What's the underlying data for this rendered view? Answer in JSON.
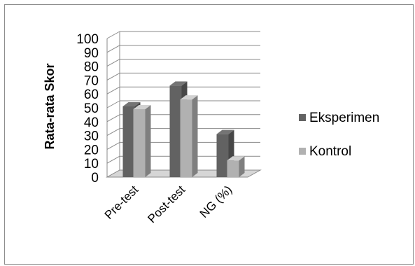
{
  "chart_data": {
    "type": "bar",
    "style": "3d-clustered-column",
    "categories": [
      "Pre-test",
      "Post-test",
      "NG (%)"
    ],
    "series": [
      {
        "name": "Eksperimen",
        "values": [
          51,
          66,
          31
        ],
        "color": "#626262"
      },
      {
        "name": "Kontrol",
        "values": [
          49,
          56,
          12
        ],
        "color": "#b1b1b1"
      }
    ],
    "ylabel": "Rata-rata Skor",
    "xlabel": "",
    "ylim": [
      0,
      100
    ],
    "yticks": [
      0,
      10,
      20,
      30,
      40,
      50,
      60,
      70,
      80,
      90,
      100
    ],
    "grid": true,
    "legend_position": "right"
  }
}
